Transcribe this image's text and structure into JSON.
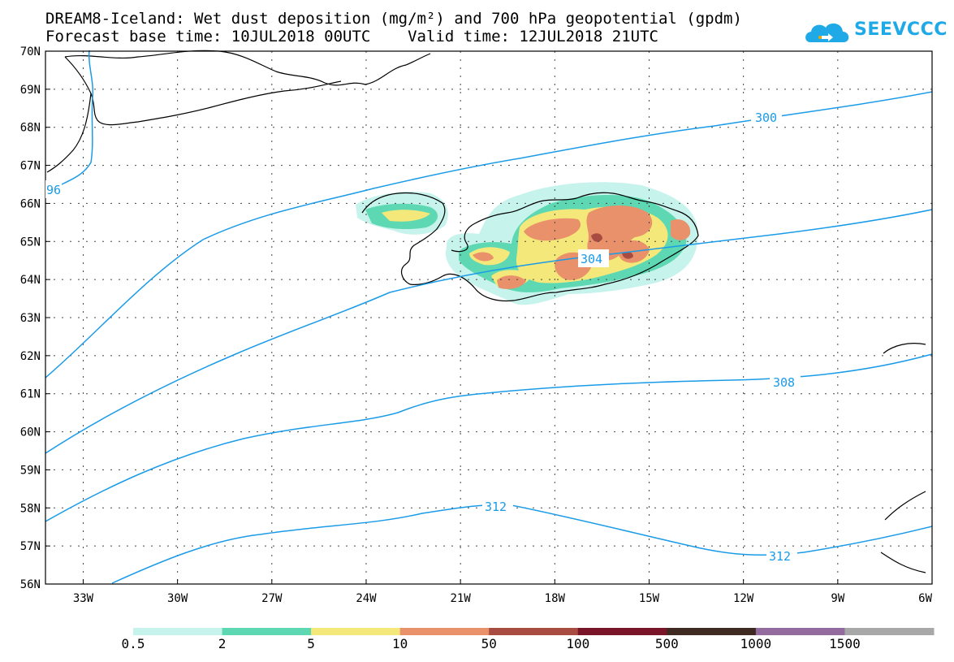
{
  "header": {
    "title_line1": "DREAM8-Iceland: Wet dust deposition (mg/m²) and 700 hPa geopotential (gpdm)",
    "title_line2": "Forecast base time: 10JUL2018 00UTC    Valid time: 12JUL2018 21UTC"
  },
  "logo": {
    "text": "SEEVCCC",
    "icon": "cloud-icon",
    "color": "#1fa9e6"
  },
  "map": {
    "lat_labels": [
      "70N",
      "69N",
      "68N",
      "67N",
      "66N",
      "65N",
      "64N",
      "63N",
      "62N",
      "61N",
      "60N",
      "59N",
      "58N",
      "57N",
      "56N"
    ],
    "lon_labels": [
      "33W",
      "30W",
      "27W",
      "24W",
      "21W",
      "18W",
      "15W",
      "12W",
      "9W",
      "6W"
    ],
    "contour_color": "#1a9be8",
    "contour_labels": [
      "300",
      "304",
      "308",
      "312",
      "312",
      "96"
    ]
  },
  "legend": {
    "labels": [
      "0.5",
      "2",
      "5",
      "10",
      "50",
      "100",
      "500",
      "1000",
      "1500"
    ],
    "colors": [
      "#c6f3ec",
      "#5ed8b2",
      "#f5e87a",
      "#e8916a",
      "#a84c42",
      "#7a1428",
      "#3e2a20",
      "#936b9e",
      "#a8a8a8"
    ]
  }
}
